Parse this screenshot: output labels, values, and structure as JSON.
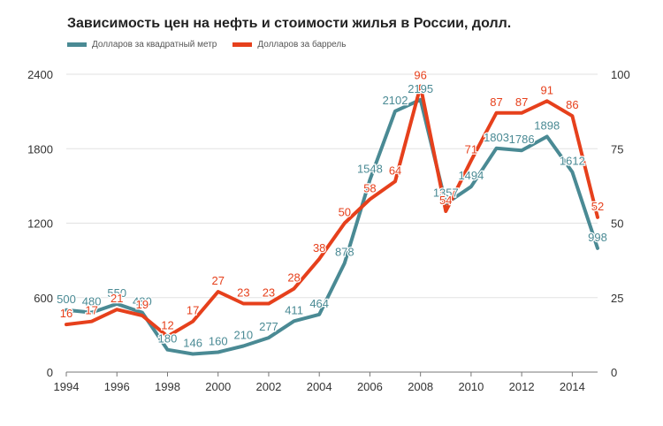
{
  "chart_data": {
    "type": "line",
    "title": "Зависимость цен на нефть и стоимости жилья в России, долл.",
    "x": [
      1994,
      1995,
      1996,
      1997,
      1998,
      1999,
      2000,
      2001,
      2002,
      2003,
      2004,
      2005,
      2006,
      2007,
      2008,
      2009,
      2010,
      2011,
      2012,
      2013,
      2014,
      2015
    ],
    "x_ticks": [
      "1994",
      "1996",
      "1998",
      "2000",
      "2002",
      "2004",
      "2006",
      "2008",
      "2010",
      "2012",
      "2014"
    ],
    "y_left_ticks": [
      "0",
      "600",
      "1200",
      "1800",
      "2400"
    ],
    "y_right_ticks": [
      "0",
      "25",
      "50",
      "75",
      "100"
    ],
    "y_left_lim": [
      0,
      2400
    ],
    "y_right_lim": [
      0,
      100
    ],
    "grid": "horizontal",
    "legend_position": "top-left",
    "series": [
      {
        "name": "Долларов за квадратный метр",
        "axis": "left",
        "color": "#4a8a94",
        "values": [
          500,
          480,
          550,
          480,
          180,
          146,
          160,
          210,
          277,
          411,
          464,
          878,
          1548,
          2102,
          2195,
          1357,
          1494,
          1803,
          1786,
          1898,
          1612,
          998
        ],
        "labels": [
          "500",
          "480",
          "550",
          "480",
          "180",
          "146",
          "160",
          "210",
          "277",
          "411",
          "464",
          "878",
          "1548",
          "2102",
          "2195",
          "1357",
          "1494",
          "1803",
          "1786",
          "1898",
          "1612",
          "998"
        ]
      },
      {
        "name": "Долларов за баррель",
        "axis": "right",
        "color": "#e6401c",
        "values": [
          16,
          17,
          21,
          19,
          12,
          17,
          27,
          23,
          23,
          28,
          38,
          50,
          58,
          64,
          96,
          54,
          71,
          87,
          87,
          91,
          86,
          52
        ],
        "labels": [
          "16",
          "17",
          "21",
          "19",
          "12",
          "17",
          "27",
          "23",
          "23",
          "28",
          "38",
          "50",
          "58",
          "64",
          "96",
          "54",
          "71",
          "87",
          "87",
          "91",
          "86",
          "52"
        ]
      }
    ]
  }
}
